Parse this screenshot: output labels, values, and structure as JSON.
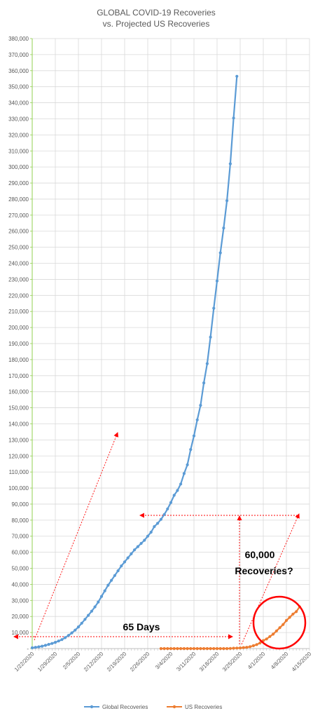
{
  "chart_data": {
    "type": "line",
    "title_line1": "GLOBAL COVID-19 Recoveries",
    "title_line2": "vs. Projected US Recoveries",
    "ylim": [
      0,
      380000
    ],
    "y_tick_step": 10000,
    "y_tick_labels": [
      "-",
      "10,000",
      "20,000",
      "30,000",
      "40,000",
      "50,000",
      "60,000",
      "70,000",
      "80,000",
      "90,000",
      "100,000",
      "110,000",
      "120,000",
      "130,000",
      "140,000",
      "150,000",
      "160,000",
      "170,000",
      "180,000",
      "190,000",
      "200,000",
      "210,000",
      "220,000",
      "230,000",
      "240,000",
      "250,000",
      "260,000",
      "270,000",
      "280,000",
      "290,000",
      "300,000",
      "310,000",
      "320,000",
      "330,000",
      "340,000",
      "350,000",
      "360,000",
      "370,000",
      "380,000"
    ],
    "x_tick_labels": [
      "1/22/2020",
      "1/29/2020",
      "2/5/2020",
      "2/12/2020",
      "2/19/2020",
      "2/26/2020",
      "3/4/2020",
      "3/11/2020",
      "3/18/2020",
      "3/25/2020",
      "4/1/2020",
      "4/8/2020",
      "4/15/2020"
    ],
    "grid": true,
    "legend_position": "bottom",
    "series": [
      {
        "name": "Global Recoveries",
        "color": "#5B9BD5",
        "start_date": "1/22/2020",
        "values": [
          500,
          800,
          1100,
          1500,
          2000,
          2600,
          3200,
          3900,
          4700,
          5600,
          6800,
          8200,
          9800,
          11500,
          13500,
          15800,
          18200,
          20700,
          23300,
          26000,
          29000,
          32500,
          36000,
          39500,
          42500,
          45500,
          48500,
          51500,
          54000,
          56500,
          59000,
          61500,
          63500,
          65500,
          67500,
          70000,
          72500,
          76000,
          78000,
          80500,
          83500,
          87000,
          91000,
          95500,
          98500,
          102500,
          109000,
          114500,
          124000,
          132500,
          142500,
          151500,
          165500,
          177500,
          194000,
          212000,
          229000,
          246500,
          262000,
          279000,
          302000,
          330500,
          356500
        ]
      },
      {
        "name": "US Recoveries",
        "color": "#ED7D31",
        "start_date": "3/1/2020",
        "values": [
          0,
          0,
          0,
          0,
          0,
          0,
          0,
          0,
          0,
          0,
          0,
          0,
          0,
          0,
          0,
          0,
          0,
          0,
          0,
          0,
          0,
          100,
          200,
          300,
          400,
          600,
          800,
          1200,
          1800,
          2500,
          3500,
          5000,
          6000,
          7500,
          9000,
          11000,
          13000,
          15000,
          17500,
          19500,
          21500,
          23000,
          26000
        ]
      }
    ]
  },
  "annotations": {
    "days_label": "65 Days",
    "recoveries_line1": "60,000",
    "recoveries_line2": "Recoveries?"
  }
}
